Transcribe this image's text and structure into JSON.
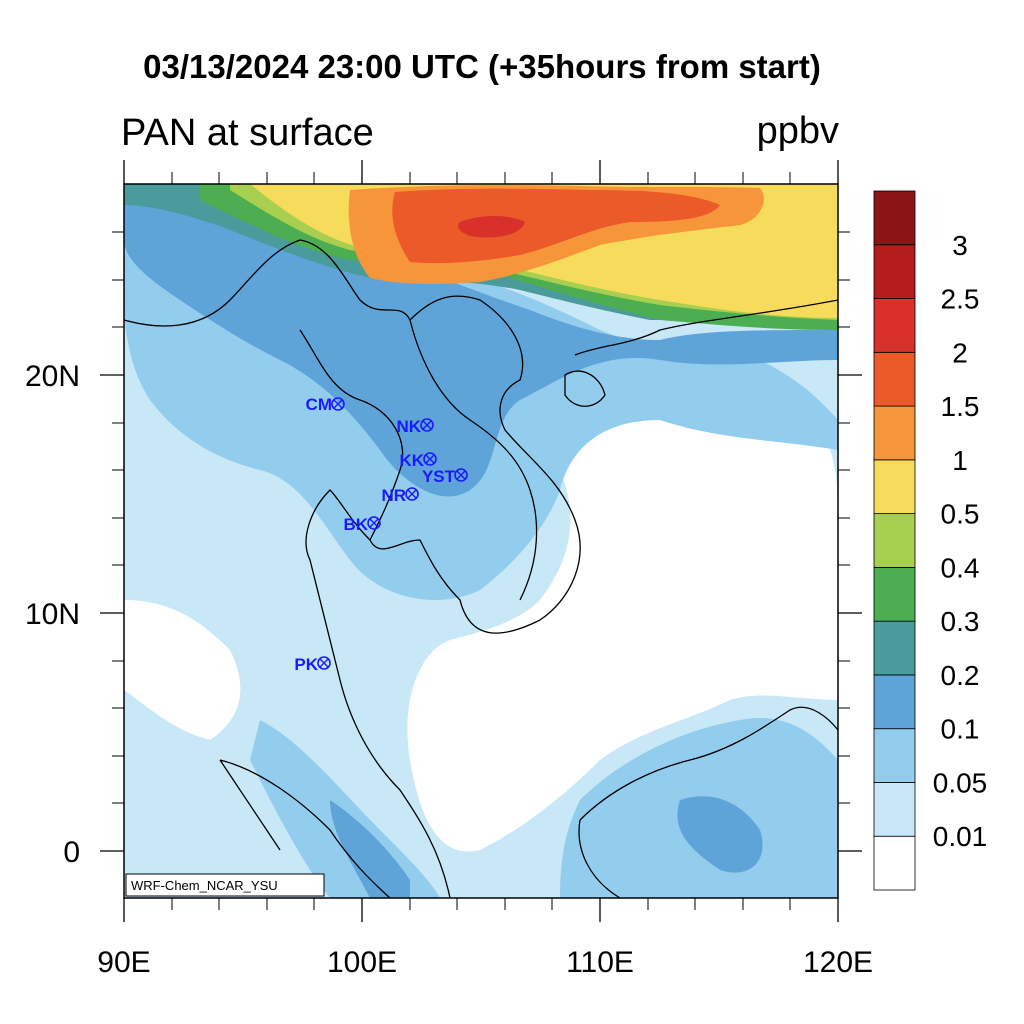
{
  "title": "03/13/2024 23:00 UTC (+35hours from start)",
  "field_label": "PAN at surface",
  "units": "ppbv",
  "credit": "WRF-Chem_NCAR_YSU",
  "axes": {
    "x_ticks": [
      "90E",
      "100E",
      "110E",
      "120E"
    ],
    "y_ticks": [
      "20N",
      "10N",
      "0"
    ]
  },
  "legend": {
    "levels": [
      "0.01",
      "0.05",
      "0.1",
      "0.2",
      "0.3",
      "0.4",
      "0.5",
      "1",
      "1.5",
      "2",
      "2.5",
      "3"
    ],
    "colors": [
      "#ffffff",
      "#c8e7f7",
      "#93cdee",
      "#5fa4d8",
      "#4a9b9b",
      "#4cae50",
      "#a8cf4f",
      "#f7dc5b",
      "#f7953b",
      "#ec5a29",
      "#d8302b",
      "#b51c1c",
      "#8b1414"
    ]
  },
  "stations": [
    {
      "code": "CM",
      "label": "CM"
    },
    {
      "code": "NK",
      "label": "NK"
    },
    {
      "code": "KK",
      "label": "KK"
    },
    {
      "code": "YST",
      "label": "YST"
    },
    {
      "code": "NR",
      "label": "NR"
    },
    {
      "code": "BK",
      "label": "BK"
    },
    {
      "code": "PK",
      "label": "PK"
    }
  ]
}
